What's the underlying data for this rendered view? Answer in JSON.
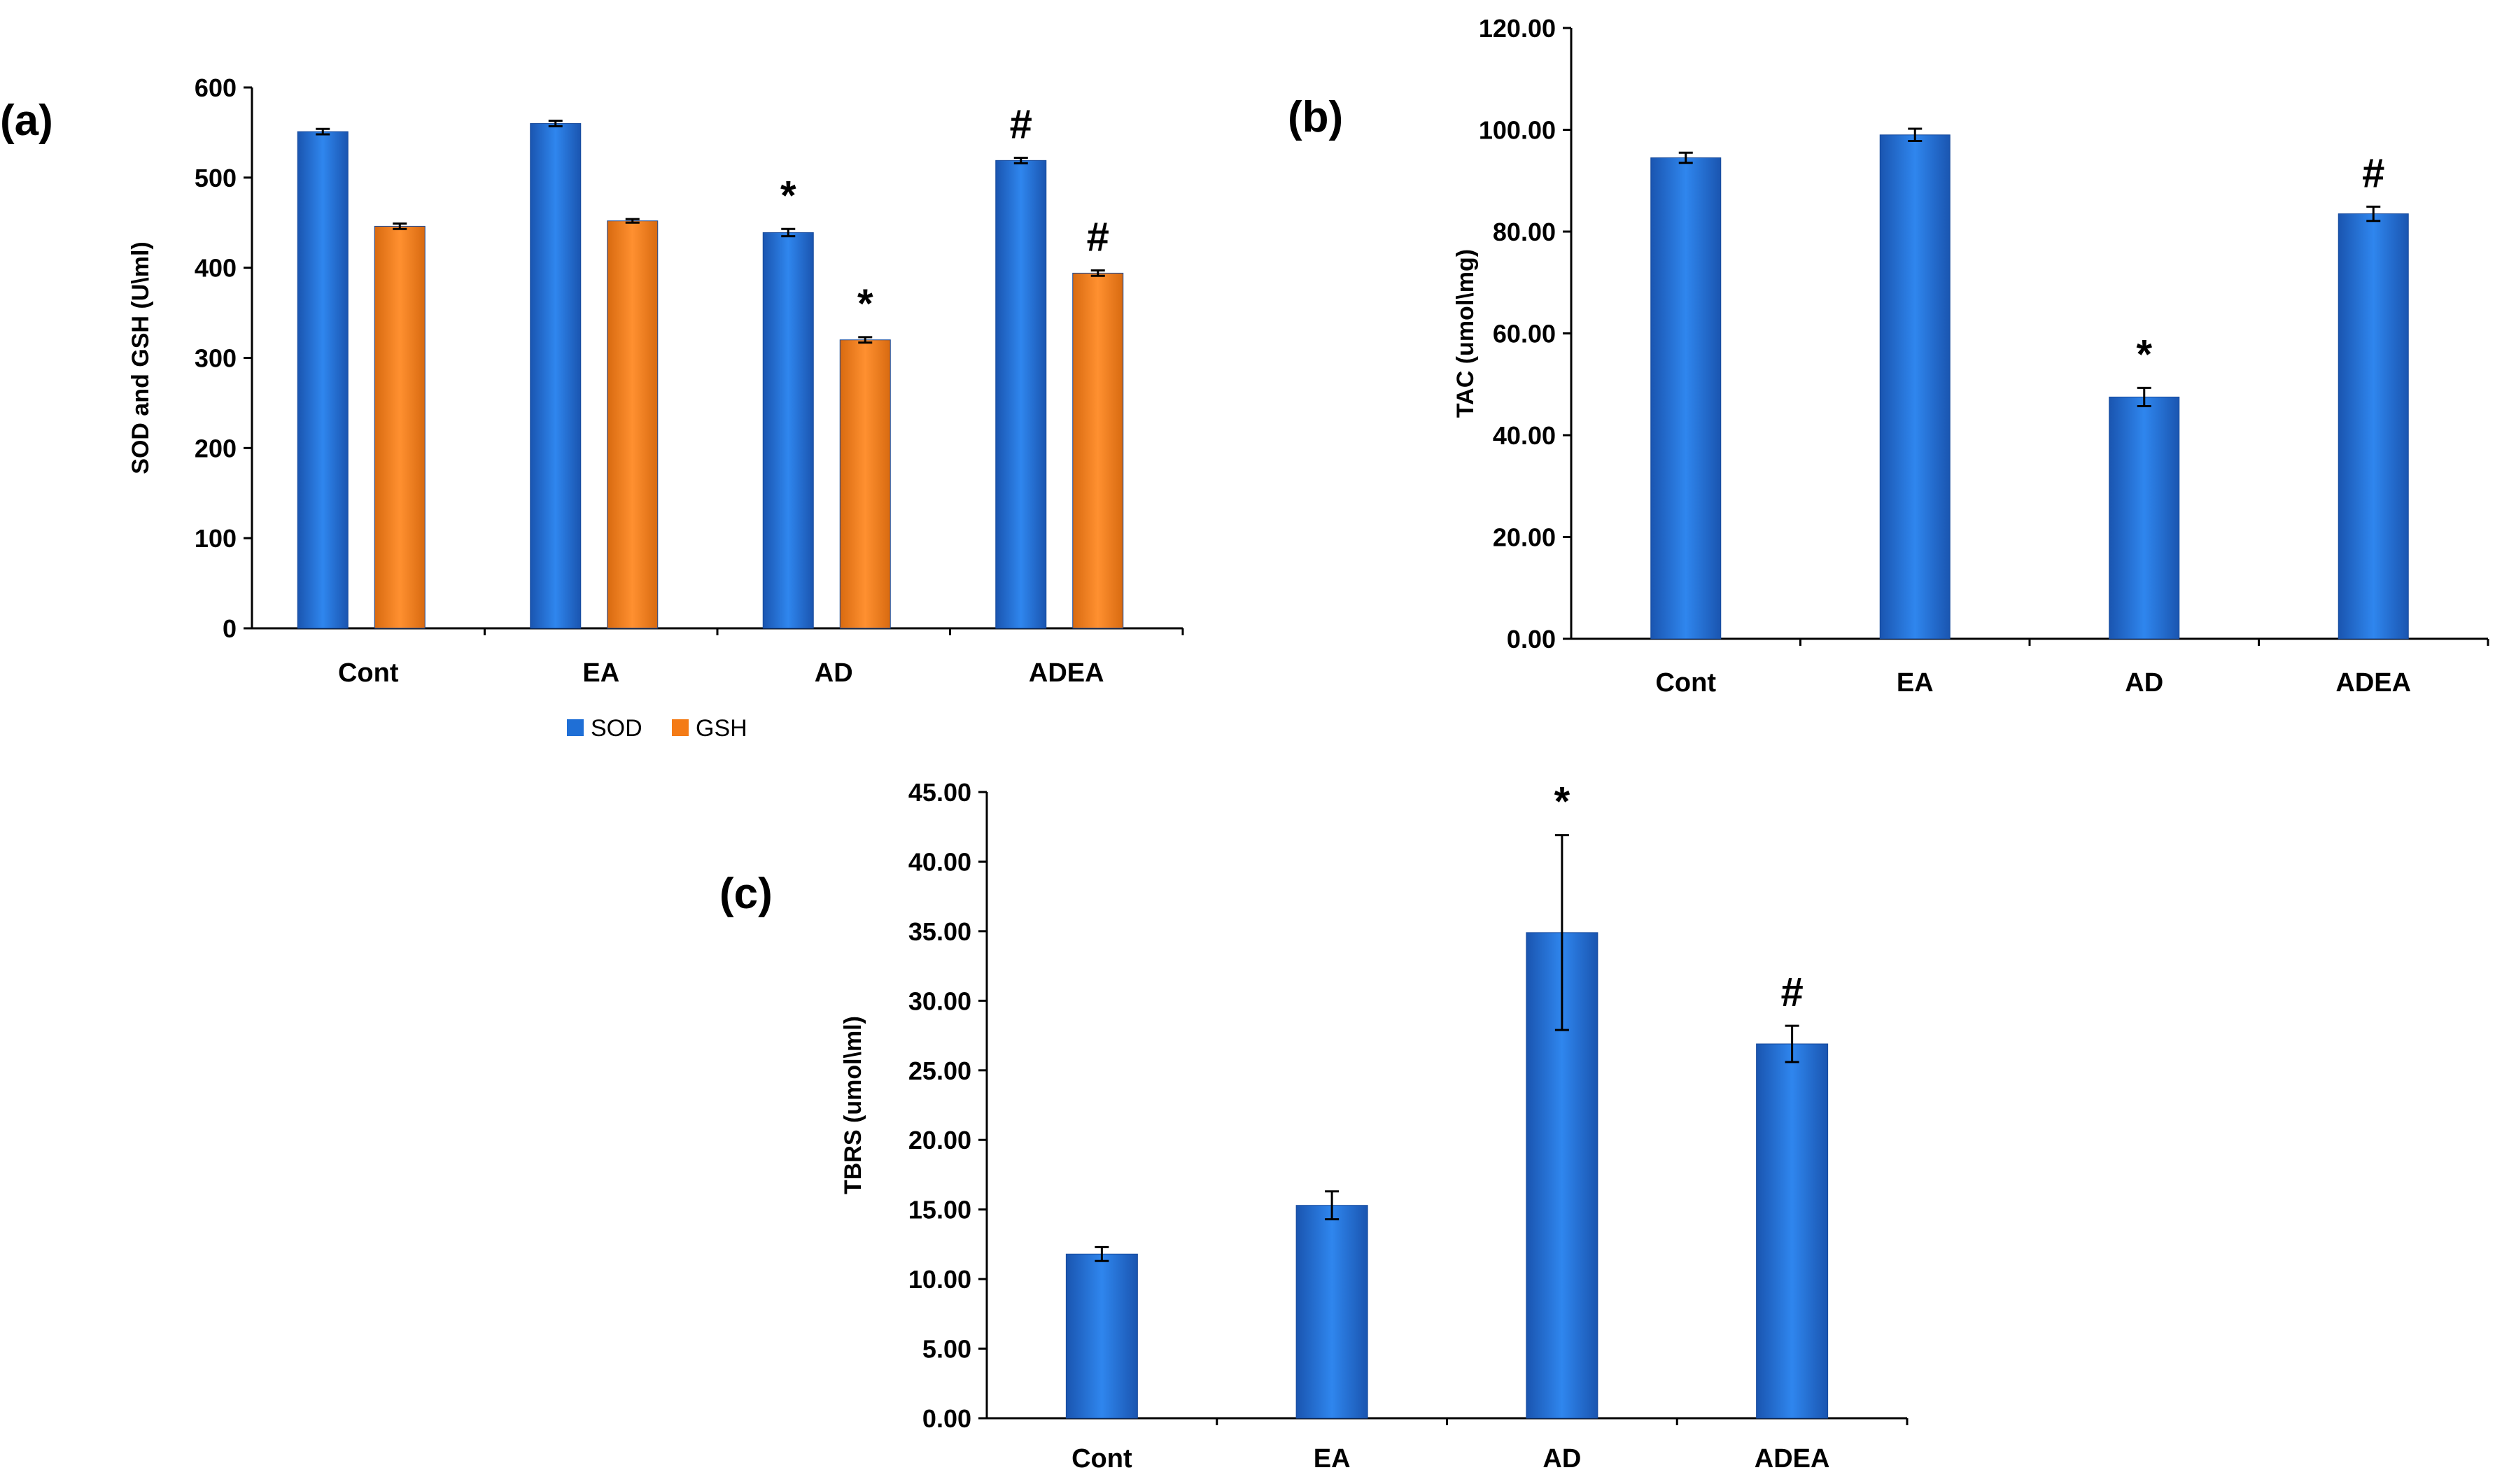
{
  "chart_data": [
    {
      "panel": "(a)",
      "type": "bar",
      "categories": [
        "Cont",
        "EA",
        "AD",
        "ADEA"
      ],
      "series": [
        {
          "name": "SOD",
          "color": "#1f6fd6",
          "values": [
            551,
            560,
            439,
            519
          ],
          "errors": [
            3,
            3,
            4,
            3
          ],
          "marks": [
            "",
            "",
            "*",
            "#"
          ]
        },
        {
          "name": "GSH",
          "color": "#f47b16",
          "values": [
            446,
            452,
            320,
            394
          ],
          "errors": [
            3,
            2,
            3,
            3
          ],
          "marks": [
            "",
            "",
            "*",
            "#"
          ]
        }
      ],
      "ylabel": "SOD and GSH (U\\ml)",
      "ylim": [
        0,
        600
      ],
      "yticks": [
        "0",
        "100",
        "200",
        "300",
        "400",
        "500",
        "600"
      ],
      "legend": "bottom"
    },
    {
      "panel": "(b)",
      "type": "bar",
      "categories": [
        "Cont",
        "EA",
        "AD",
        "ADEA"
      ],
      "series": [
        {
          "color": "#1f6fd6",
          "values": [
            94.5,
            99.0,
            47.5,
            83.5
          ],
          "errors": [
            1.0,
            1.2,
            1.8,
            1.4
          ],
          "marks": [
            "",
            "",
            "*",
            "#"
          ]
        }
      ],
      "ylabel": "TAC (umol\\mg)",
      "ylim": [
        0,
        120
      ],
      "yticks": [
        "0.00",
        "20.00",
        "40.00",
        "60.00",
        "80.00",
        "100.00",
        "120.00"
      ]
    },
    {
      "panel": "(c)",
      "type": "bar",
      "categories": [
        "Cont",
        "EA",
        "AD",
        "ADEA"
      ],
      "series": [
        {
          "color": "#1f6fd6",
          "values": [
            11.8,
            15.3,
            34.9,
            26.9
          ],
          "errors": [
            0.5,
            1.0,
            7.0,
            1.3
          ],
          "marks": [
            "",
            "",
            "*",
            "#"
          ]
        }
      ],
      "ylabel": "TBRS (umol\\ml)",
      "ylim": [
        0,
        45
      ],
      "yticks": [
        "0.00",
        "5.00",
        "10.00",
        "15.00",
        "20.00",
        "25.00",
        "30.00",
        "35.00",
        "40.00",
        "45.00"
      ]
    }
  ]
}
